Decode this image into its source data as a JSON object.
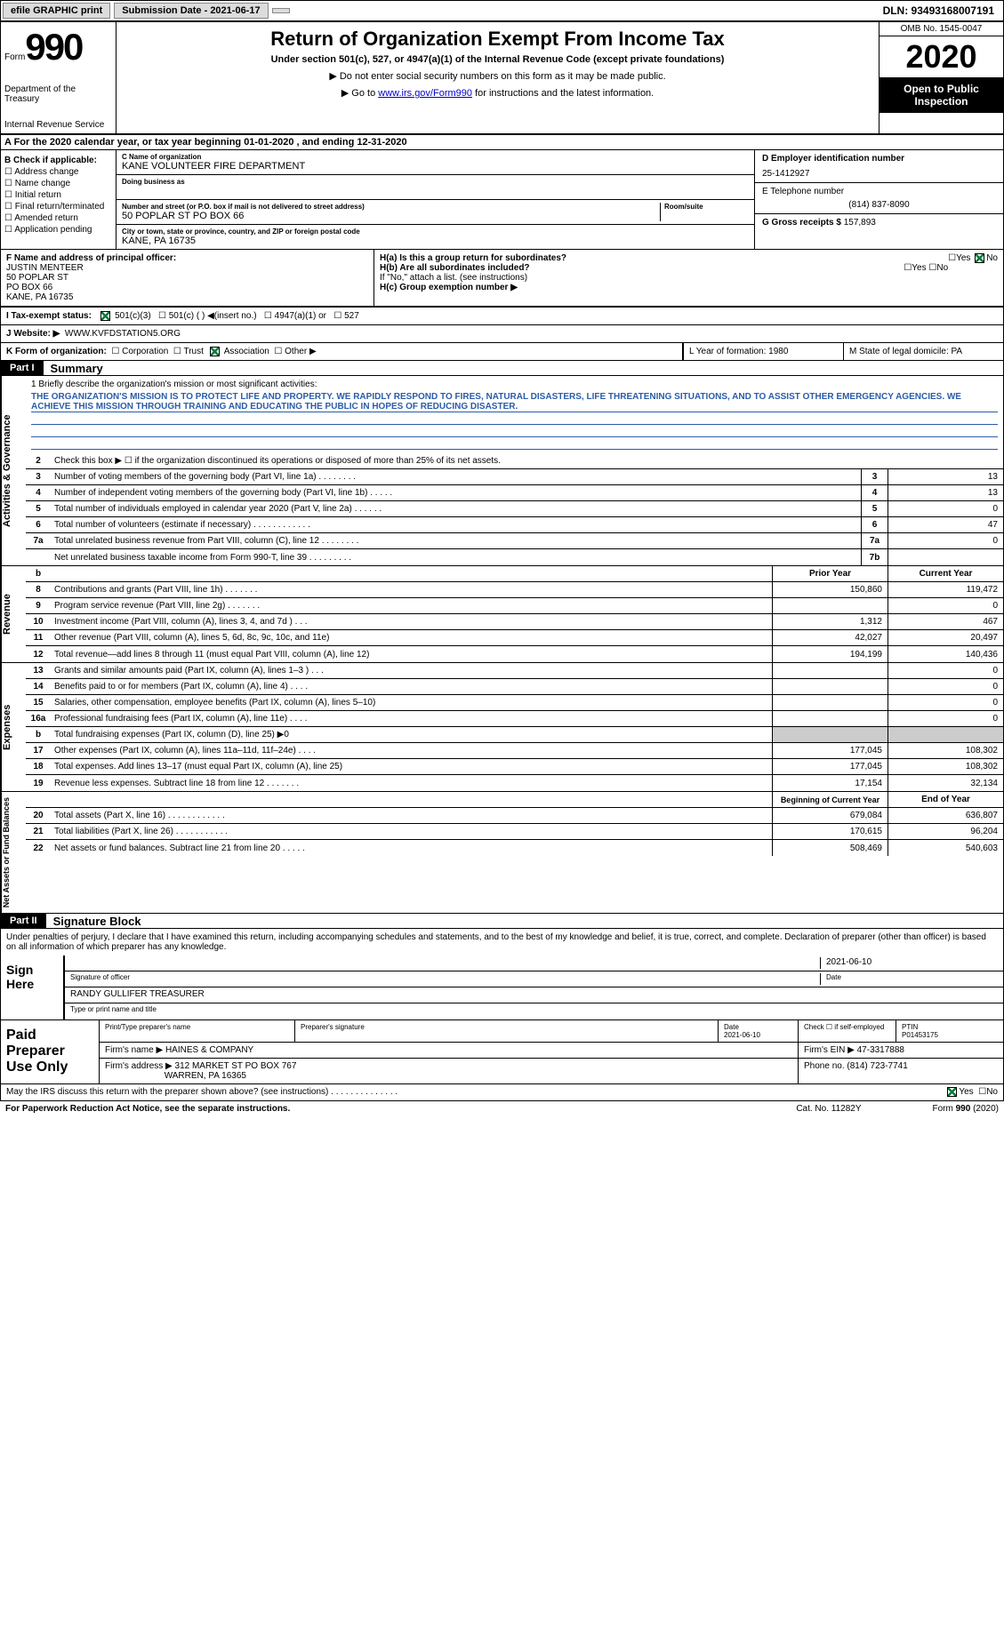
{
  "topbar": {
    "efile": "efile GRAPHIC print",
    "sub_label": "Submission Date - 2021-06-17",
    "dln": "DLN: 93493168007191"
  },
  "header": {
    "form_word": "Form",
    "form_number": "990",
    "dept1": "Department of the Treasury",
    "dept2": "Internal Revenue Service",
    "title": "Return of Organization Exempt From Income Tax",
    "subtitle": "Under section 501(c), 527, or 4947(a)(1) of the Internal Revenue Code (except private foundations)",
    "note1": "▶ Do not enter social security numbers on this form as it may be made public.",
    "note2_pre": "▶ Go to ",
    "note2_link": "www.irs.gov/Form990",
    "note2_post": " for instructions and the latest information.",
    "omb": "OMB No. 1545-0047",
    "year": "2020",
    "public1": "Open to Public",
    "public2": "Inspection"
  },
  "section_a": "A For the 2020 calendar year, or tax year beginning 01-01-2020    , and ending 12-31-2020",
  "col_b": {
    "h": "B Check if applicable:",
    "items": [
      "Address change",
      "Name change",
      "Initial return",
      "Final return/terminated",
      "Amended return",
      "Application pending"
    ]
  },
  "col_c": {
    "name_label": "C Name of organization",
    "name": "KANE VOLUNTEER FIRE DEPARTMENT",
    "dba_label": "Doing business as",
    "addr_label": "Number and street (or P.O. box if mail is not delivered to street address)",
    "addr": "50 POPLAR ST PO BOX 66",
    "room_label": "Room/suite",
    "city_label": "City or town, state or province, country, and ZIP or foreign postal code",
    "city": "KANE, PA  16735"
  },
  "col_d": {
    "ein_label": "D Employer identification number",
    "ein": "25-1412927",
    "phone_label": "E Telephone number",
    "phone": "(814) 837-8090",
    "gross_label": "G Gross receipts $",
    "gross": "157,893"
  },
  "officer": {
    "label": "F  Name and address of principal officer:",
    "name": "JUSTIN MENTEER",
    "addr1": "50 POPLAR ST",
    "addr2": "PO BOX 66",
    "addr3": "KANE, PA  16735"
  },
  "h_section": {
    "ha": "H(a)  Is this a group return for subordinates?",
    "hb": "H(b)  Are all subordinates included?",
    "hb_note": "If \"No,\" attach a list. (see instructions)",
    "hc": "H(c)  Group exemption number ▶"
  },
  "tax_status": {
    "label": "I   Tax-exempt status:",
    "opts": [
      "501(c)(3)",
      "501(c) (  ) ◀(insert no.)",
      "4947(a)(1) or",
      "527"
    ]
  },
  "website": {
    "label": "J   Website: ▶",
    "val": "WWW.KVFDSTATION5.ORG"
  },
  "k_row": {
    "label": "K Form of organization:",
    "opts": [
      "Corporation",
      "Trust",
      "Association",
      "Other ▶"
    ],
    "l": "L Year of formation: 1980",
    "m": "M State of legal domicile: PA"
  },
  "parts": {
    "p1": "Part I",
    "p1_title": "Summary",
    "p2": "Part II",
    "p2_title": "Signature Block"
  },
  "sidebars": {
    "s1": "Activities & Governance",
    "s2": "Revenue",
    "s3": "Expenses",
    "s4": "Net Assets or Fund Balances"
  },
  "mission": {
    "label": "1  Briefly describe the organization's mission or most significant activities:",
    "text": "THE ORGANIZATION'S MISSION IS TO PROTECT LIFE AND PROPERTY. WE RAPIDLY RESPOND TO FIRES, NATURAL DISASTERS, LIFE THREATENING SITUATIONS, AND TO ASSIST OTHER EMERGENCY AGENCIES. WE ACHIEVE THIS MISSION THROUGH TRAINING AND EDUCATING THE PUBLIC IN HOPES OF REDUCING DISASTER."
  },
  "lines_gov": [
    {
      "n": "2",
      "d": "Check this box ▶ ☐  if the organization discontinued its operations or disposed of more than 25% of its net assets."
    },
    {
      "n": "3",
      "d": "Number of voting members of the governing body (Part VI, line 1a)  .   .   .   .   .   .   .   .",
      "box": "3",
      "v": "13"
    },
    {
      "n": "4",
      "d": "Number of independent voting members of the governing body (Part VI, line 1b)   .   .   .   .   .",
      "box": "4",
      "v": "13"
    },
    {
      "n": "5",
      "d": "Total number of individuals employed in calendar year 2020 (Part V, line 2a)   .   .   .   .   .   .",
      "box": "5",
      "v": "0"
    },
    {
      "n": "6",
      "d": "Total number of volunteers (estimate if necessary)   .   .   .   .   .   .   .   .   .   .   .   .",
      "box": "6",
      "v": "47"
    },
    {
      "n": "7a",
      "d": "Total unrelated business revenue from Part VIII, column (C), line 12   .   .   .   .   .   .   .   .",
      "box": "7a",
      "v": "0"
    },
    {
      "n": "",
      "d": "Net unrelated business taxable income from Form 990-T, line 39   .   .   .   .   .   .   .   .   .",
      "box": "7b",
      "v": ""
    }
  ],
  "col_headers": {
    "prior": "Prior Year",
    "current": "Current Year",
    "boy": "Beginning of Current Year",
    "eoy": "End of Year"
  },
  "lines_rev": [
    {
      "n": "8",
      "d": "Contributions and grants (Part VIII, line 1h)   .   .   .   .   .   .   .",
      "p": "150,860",
      "c": "119,472"
    },
    {
      "n": "9",
      "d": "Program service revenue (Part VIII, line 2g)   .   .   .   .   .   .   .",
      "p": "",
      "c": "0"
    },
    {
      "n": "10",
      "d": "Investment income (Part VIII, column (A), lines 3, 4, and 7d )   .   .   .",
      "p": "1,312",
      "c": "467"
    },
    {
      "n": "11",
      "d": "Other revenue (Part VIII, column (A), lines 5, 6d, 8c, 9c, 10c, and 11e)",
      "p": "42,027",
      "c": "20,497"
    },
    {
      "n": "12",
      "d": "Total revenue—add lines 8 through 11 (must equal Part VIII, column (A), line 12)",
      "p": "194,199",
      "c": "140,436"
    }
  ],
  "lines_exp": [
    {
      "n": "13",
      "d": "Grants and similar amounts paid (Part IX, column (A), lines 1–3 )   .   .   .",
      "p": "",
      "c": "0"
    },
    {
      "n": "14",
      "d": "Benefits paid to or for members (Part IX, column (A), line 4)   .   .   .   .",
      "p": "",
      "c": "0"
    },
    {
      "n": "15",
      "d": "Salaries, other compensation, employee benefits (Part IX, column (A), lines 5–10)",
      "p": "",
      "c": "0"
    },
    {
      "n": "16a",
      "d": "Professional fundraising fees (Part IX, column (A), line 11e)   .   .   .   .",
      "p": "",
      "c": "0"
    },
    {
      "n": "b",
      "d": "Total fundraising expenses (Part IX, column (D), line 25) ▶0",
      "p": "gray",
      "c": "gray"
    },
    {
      "n": "17",
      "d": "Other expenses (Part IX, column (A), lines 11a–11d, 11f–24e)   .   .   .   .",
      "p": "177,045",
      "c": "108,302"
    },
    {
      "n": "18",
      "d": "Total expenses. Add lines 13–17 (must equal Part IX, column (A), line 25)",
      "p": "177,045",
      "c": "108,302"
    },
    {
      "n": "19",
      "d": "Revenue less expenses. Subtract line 18 from line 12   .   .   .   .   .   .   .",
      "p": "17,154",
      "c": "32,134"
    }
  ],
  "lines_net": [
    {
      "n": "20",
      "d": "Total assets (Part X, line 16)   .   .   .   .   .   .   .   .   .   .   .   .",
      "p": "679,084",
      "c": "636,807"
    },
    {
      "n": "21",
      "d": "Total liabilities (Part X, line 26)   .   .   .   .   .   .   .   .   .   .   .",
      "p": "170,615",
      "c": "96,204"
    },
    {
      "n": "22",
      "d": "Net assets or fund balances. Subtract line 21 from line 20   .   .   .   .   .",
      "p": "508,469",
      "c": "540,603"
    }
  ],
  "sig": {
    "perjury": "Under penalties of perjury, I declare that I have examined this return, including accompanying schedules and statements, and to the best of my knowledge and belief, it is true, correct, and complete. Declaration of preparer (other than officer) is based on all information of which preparer has any knowledge.",
    "sign_here": "Sign Here",
    "sig_officer": "Signature of officer",
    "date": "Date",
    "date_val": "2021-06-10",
    "name_title": "RANDY GULLIFER  TREASURER",
    "type_name": "Type or print name and title"
  },
  "paid": {
    "label": "Paid Preparer Use Only",
    "h1": "Print/Type preparer's name",
    "h2": "Preparer's signature",
    "h3": "Date",
    "h3v": "2021-06-10",
    "h4": "Check ☐ if self-employed",
    "h5": "PTIN",
    "h5v": "P01453175",
    "firm_name_l": "Firm's name    ▶",
    "firm_name": "HAINES & COMPANY",
    "firm_ein_l": "Firm's EIN ▶",
    "firm_ein": "47-3317888",
    "firm_addr_l": "Firm's address ▶",
    "firm_addr1": "312 MARKET ST PO BOX 767",
    "firm_addr2": "WARREN, PA  16365",
    "phone_l": "Phone no.",
    "phone": "(814) 723-7741"
  },
  "bottom": {
    "q": "May the IRS discuss this return with the preparer shown above? (see instructions)   .   .   .   .   .   .   .   .   .   .   .   .   .   .",
    "yes": "Yes",
    "no": "No"
  },
  "footer": {
    "left": "For Paperwork Reduction Act Notice, see the separate instructions.",
    "mid": "Cat. No. 11282Y",
    "right": "Form 990 (2020)"
  }
}
